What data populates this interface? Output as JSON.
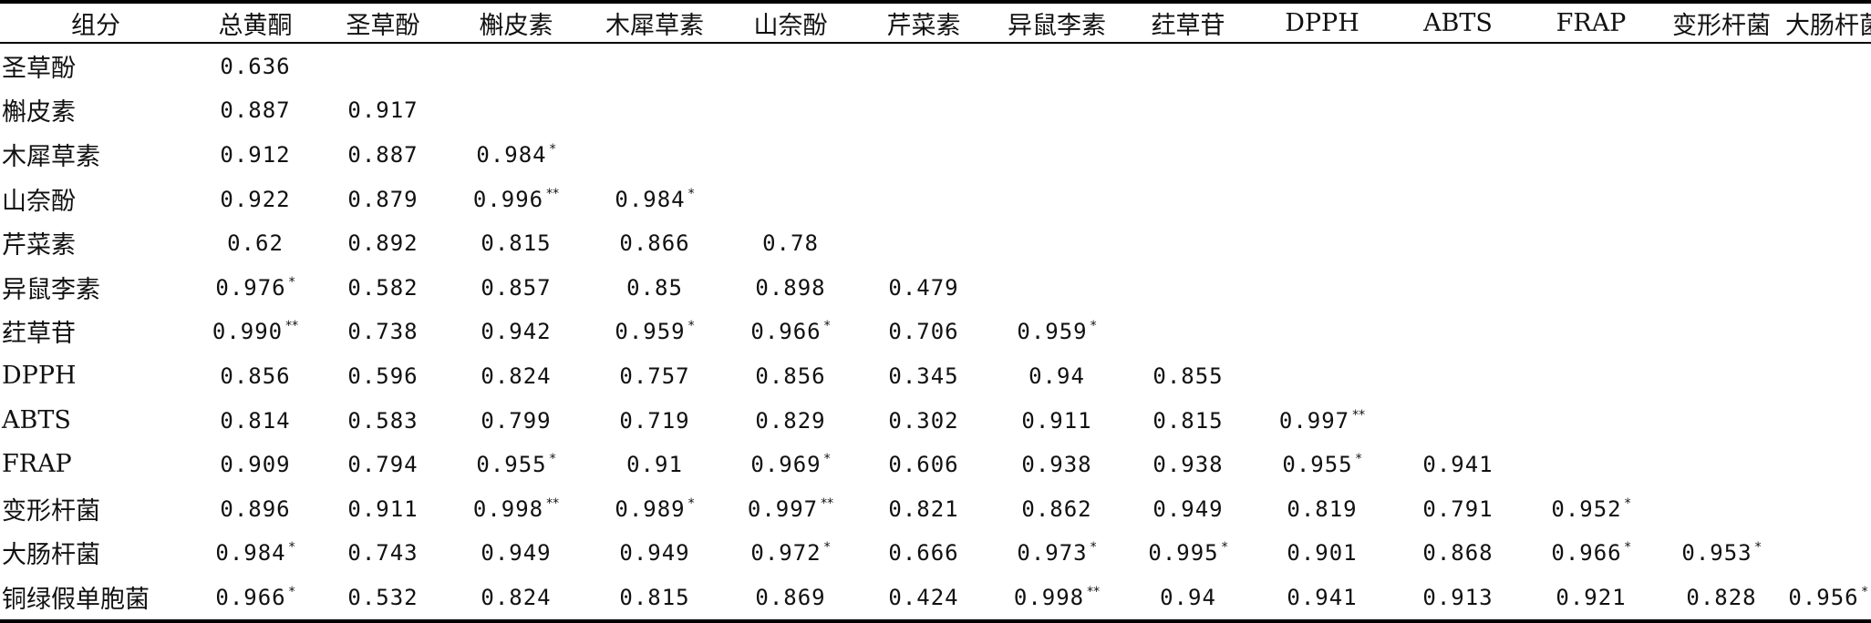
{
  "table": {
    "headers": [
      "组分",
      "总黄酮",
      "圣草酚",
      "槲皮素",
      "木犀草素",
      "山奈酚",
      "芹菜素",
      "异鼠李素",
      "荭草苷",
      "DPPH",
      "ABTS",
      "FRAP",
      "变形杆菌",
      "大肠杆菌"
    ],
    "rows": [
      {
        "label": "圣草酚",
        "cells": [
          {
            "v": "0.636",
            "s": ""
          }
        ]
      },
      {
        "label": "槲皮素",
        "cells": [
          {
            "v": "0.887",
            "s": ""
          },
          {
            "v": "0.917",
            "s": ""
          }
        ]
      },
      {
        "label": "木犀草素",
        "cells": [
          {
            "v": "0.912",
            "s": ""
          },
          {
            "v": "0.887",
            "s": ""
          },
          {
            "v": "0.984",
            "s": "*"
          }
        ]
      },
      {
        "label": "山奈酚",
        "cells": [
          {
            "v": "0.922",
            "s": ""
          },
          {
            "v": "0.879",
            "s": ""
          },
          {
            "v": "0.996",
            "s": "**"
          },
          {
            "v": "0.984",
            "s": "*"
          }
        ]
      },
      {
        "label": "芹菜素",
        "cells": [
          {
            "v": "0.62",
            "s": ""
          },
          {
            "v": "0.892",
            "s": ""
          },
          {
            "v": "0.815",
            "s": ""
          },
          {
            "v": "0.866",
            "s": ""
          },
          {
            "v": "0.78",
            "s": ""
          }
        ]
      },
      {
        "label": "异鼠李素",
        "cells": [
          {
            "v": "0.976",
            "s": "*"
          },
          {
            "v": "0.582",
            "s": ""
          },
          {
            "v": "0.857",
            "s": ""
          },
          {
            "v": "0.85",
            "s": ""
          },
          {
            "v": "0.898",
            "s": ""
          },
          {
            "v": "0.479",
            "s": ""
          }
        ]
      },
      {
        "label": "荭草苷",
        "cells": [
          {
            "v": "0.990",
            "s": "**"
          },
          {
            "v": "0.738",
            "s": ""
          },
          {
            "v": "0.942",
            "s": ""
          },
          {
            "v": "0.959",
            "s": "*"
          },
          {
            "v": "0.966",
            "s": "*"
          },
          {
            "v": "0.706",
            "s": ""
          },
          {
            "v": "0.959",
            "s": "*"
          }
        ]
      },
      {
        "label": "DPPH",
        "cells": [
          {
            "v": "0.856",
            "s": ""
          },
          {
            "v": "0.596",
            "s": ""
          },
          {
            "v": "0.824",
            "s": ""
          },
          {
            "v": "0.757",
            "s": ""
          },
          {
            "v": "0.856",
            "s": ""
          },
          {
            "v": "0.345",
            "s": ""
          },
          {
            "v": "0.94",
            "s": ""
          },
          {
            "v": "0.855",
            "s": ""
          }
        ]
      },
      {
        "label": "ABTS",
        "cells": [
          {
            "v": "0.814",
            "s": ""
          },
          {
            "v": "0.583",
            "s": ""
          },
          {
            "v": "0.799",
            "s": ""
          },
          {
            "v": "0.719",
            "s": ""
          },
          {
            "v": "0.829",
            "s": ""
          },
          {
            "v": "0.302",
            "s": ""
          },
          {
            "v": "0.911",
            "s": ""
          },
          {
            "v": "0.815",
            "s": ""
          },
          {
            "v": "0.997",
            "s": "**"
          }
        ]
      },
      {
        "label": "FRAP",
        "cells": [
          {
            "v": "0.909",
            "s": ""
          },
          {
            "v": "0.794",
            "s": ""
          },
          {
            "v": "0.955",
            "s": "*"
          },
          {
            "v": "0.91",
            "s": ""
          },
          {
            "v": "0.969",
            "s": "*"
          },
          {
            "v": "0.606",
            "s": ""
          },
          {
            "v": "0.938",
            "s": ""
          },
          {
            "v": "0.938",
            "s": ""
          },
          {
            "v": "0.955",
            "s": "*"
          },
          {
            "v": "0.941",
            "s": ""
          }
        ]
      },
      {
        "label": "变形杆菌",
        "cells": [
          {
            "v": "0.896",
            "s": ""
          },
          {
            "v": "0.911",
            "s": ""
          },
          {
            "v": "0.998",
            "s": "**"
          },
          {
            "v": "0.989",
            "s": "*"
          },
          {
            "v": "0.997",
            "s": "**"
          },
          {
            "v": "0.821",
            "s": ""
          },
          {
            "v": "0.862",
            "s": ""
          },
          {
            "v": "0.949",
            "s": ""
          },
          {
            "v": "0.819",
            "s": ""
          },
          {
            "v": "0.791",
            "s": ""
          },
          {
            "v": "0.952",
            "s": "*"
          }
        ]
      },
      {
        "label": "大肠杆菌",
        "cells": [
          {
            "v": "0.984",
            "s": "*"
          },
          {
            "v": "0.743",
            "s": ""
          },
          {
            "v": "0.949",
            "s": ""
          },
          {
            "v": "0.949",
            "s": ""
          },
          {
            "v": "0.972",
            "s": "*"
          },
          {
            "v": "0.666",
            "s": ""
          },
          {
            "v": "0.973",
            "s": "*"
          },
          {
            "v": "0.995",
            "s": "*"
          },
          {
            "v": "0.901",
            "s": ""
          },
          {
            "v": "0.868",
            "s": ""
          },
          {
            "v": "0.966",
            "s": "*"
          },
          {
            "v": "0.953",
            "s": "*"
          }
        ]
      },
      {
        "label": "铜绿假单胞菌",
        "cells": [
          {
            "v": "0.966",
            "s": "*"
          },
          {
            "v": "0.532",
            "s": ""
          },
          {
            "v": "0.824",
            "s": ""
          },
          {
            "v": "0.815",
            "s": ""
          },
          {
            "v": "0.869",
            "s": ""
          },
          {
            "v": "0.424",
            "s": ""
          },
          {
            "v": "0.998",
            "s": "**"
          },
          {
            "v": "0.94",
            "s": ""
          },
          {
            "v": "0.941",
            "s": ""
          },
          {
            "v": "0.913",
            "s": ""
          },
          {
            "v": "0.921",
            "s": ""
          },
          {
            "v": "0.828",
            "s": ""
          },
          {
            "v": "0.956",
            "s": "*"
          }
        ]
      }
    ]
  }
}
